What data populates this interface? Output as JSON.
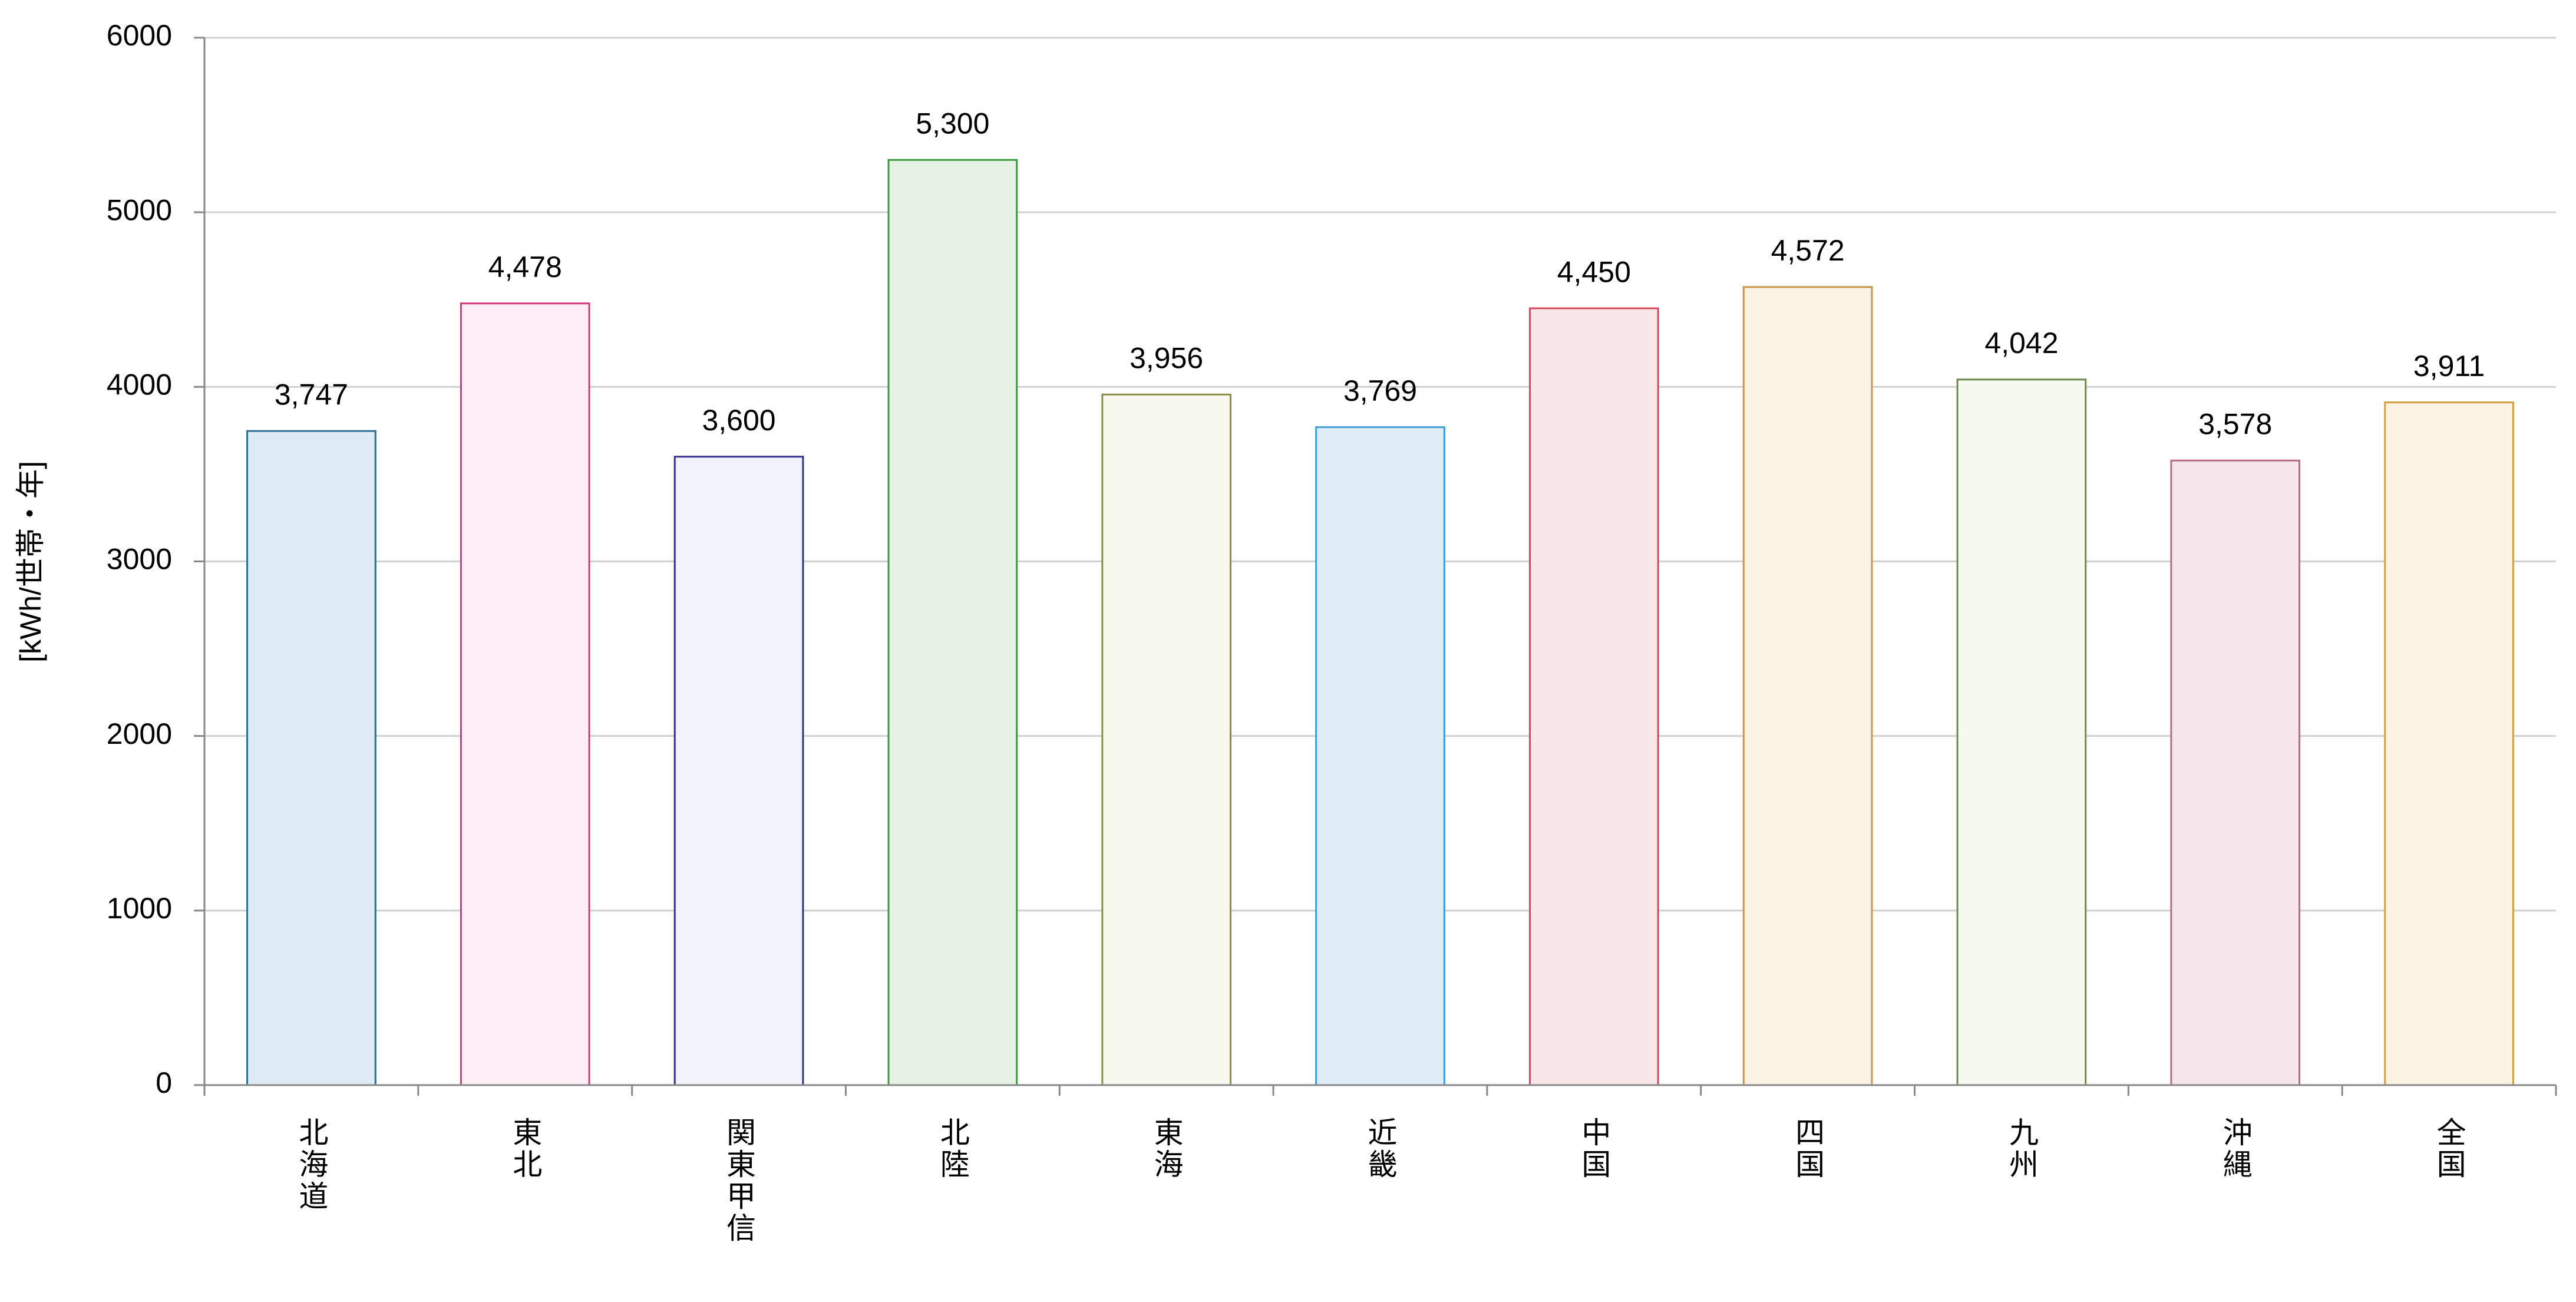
{
  "chart_data": {
    "type": "bar",
    "y_label": "[kWh/世帯・年]",
    "categories": [
      "北海道",
      "東北",
      "関東甲信",
      "北陸",
      "東海",
      "近畿",
      "中国",
      "四国",
      "九州",
      "沖縄",
      "全国"
    ],
    "values": [
      3747,
      4478,
      3600,
      5300,
      3956,
      3769,
      4450,
      4572,
      4042,
      3578,
      3911
    ],
    "value_labels": [
      "3,747",
      "4,478",
      "3,600",
      "5,300",
      "3,956",
      "3,769",
      "4,450",
      "4,572",
      "4,042",
      "3,578",
      "3,911"
    ],
    "colors": [
      "#deebf5",
      "#fdeef6",
      "#f2f2fd",
      "#e6f2e4",
      "#f7f9ee",
      "#deedf6",
      "#f8e6e8",
      "#fcf2e3",
      "#f6f9f0",
      "#f6e6ec",
      "#fcf2e3"
    ],
    "edge_colors": [
      "#2e6e8e",
      "#d6337a",
      "#2e2e8f",
      "#3a9a3a",
      "#8a8f45",
      "#3b9fd6",
      "#d9455a",
      "#c8954a",
      "#6d8a4a",
      "#b86a88",
      "#d4a040"
    ],
    "ylim": [
      0,
      6000
    ],
    "yticks": [
      0,
      1000,
      2000,
      3000,
      4000,
      5000,
      6000
    ],
    "grid": true
  }
}
